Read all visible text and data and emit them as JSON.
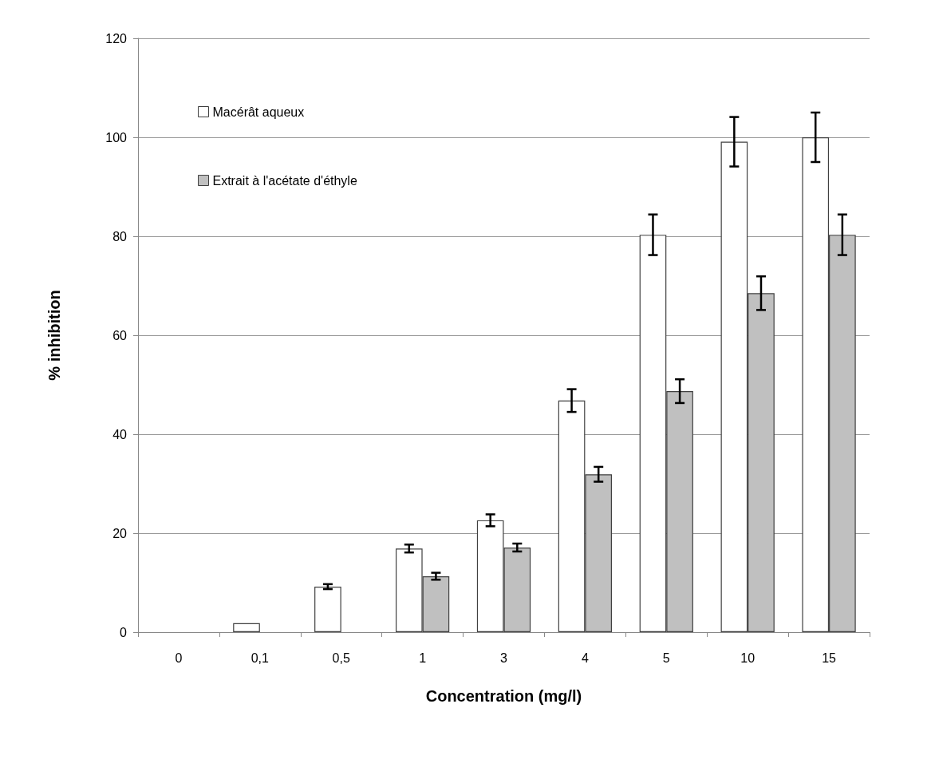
{
  "chart_data": {
    "type": "bar",
    "xlabel": "Concentration (mg/l)",
    "ylabel": "% inhibition",
    "categories": [
      "0",
      "0,1",
      "0,5",
      "1",
      "3",
      "4",
      "5",
      "10",
      "15"
    ],
    "series": [
      {
        "name": "Macérât aqueux",
        "color": "#ffffff",
        "values": [
          0,
          1.8,
          9.2,
          16.9,
          22.6,
          46.8,
          80.3,
          99.1,
          100
        ],
        "errors": [
          null,
          null,
          0.5,
          0.8,
          1.2,
          2.3,
          4.1,
          5,
          5
        ]
      },
      {
        "name": "Extrait à l'acétate d'éthyle",
        "color": "#c0c0c0",
        "values": [
          0,
          0,
          0,
          11.3,
          17.1,
          31.9,
          48.7,
          68.5,
          80.3
        ],
        "errors": [
          null,
          null,
          null,
          0.7,
          0.8,
          1.5,
          2.4,
          3.4,
          4.1
        ]
      }
    ],
    "ylim": [
      0,
      120
    ],
    "yticks": [
      0,
      20,
      40,
      60,
      80,
      100,
      120
    ],
    "grid": "y",
    "legend": "top left"
  }
}
